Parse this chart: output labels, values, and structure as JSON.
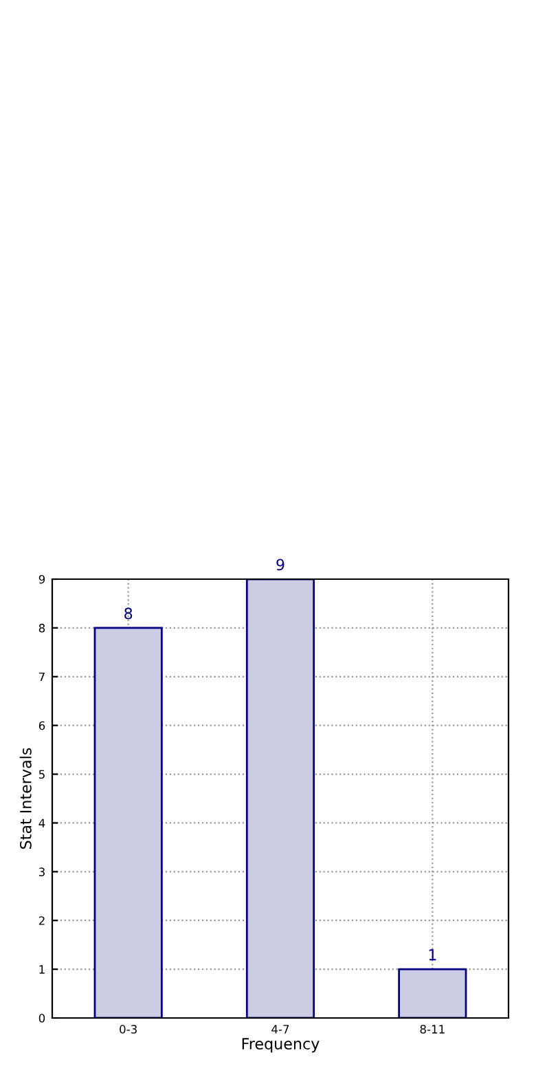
{
  "chart_data": {
    "type": "bar",
    "xlabel": "Frequency",
    "ylabel": "Stat Intervals",
    "categories": [
      "0-3",
      "4-7",
      "8-11"
    ],
    "series": [
      {
        "color": "#cccce5",
        "values": [
          8,
          9,
          1
        ]
      }
    ],
    "ylim": [
      0,
      9
    ],
    "yticks": [
      0,
      1,
      2,
      3,
      4,
      5,
      6,
      7,
      8,
      9
    ],
    "grid": true,
    "data_labels": true
  }
}
